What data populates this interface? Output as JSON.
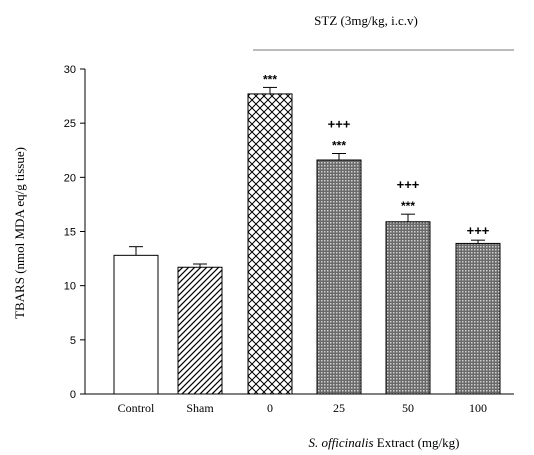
{
  "chart_data": {
    "type": "bar",
    "ylabel": "TBARS (nmol MDA eq/g tissue)",
    "ylim": [
      0,
      30
    ],
    "yticks": [
      "0",
      "5",
      "10",
      "15",
      "20",
      "25",
      "30"
    ],
    "grid": false,
    "categories": [
      "Control",
      "Sham",
      "0",
      "25",
      "50",
      "100"
    ],
    "values": [
      12.8,
      11.7,
      27.7,
      21.6,
      15.9,
      13.9
    ],
    "errors": [
      0.8,
      0.3,
      0.6,
      0.6,
      0.7,
      0.3
    ],
    "significance_vs_control": [
      "",
      "",
      "***",
      "***",
      "***",
      ""
    ],
    "significance_vs_stz": [
      "",
      "",
      "",
      "+++",
      "+++",
      "+++"
    ],
    "group_label_top": "STZ (3mg/kg, i.c.v)",
    "group_label_bottom_italic": "S. officinalis",
    "group_label_bottom_rest": " Extract (mg/kg)",
    "bar_fills": [
      "white",
      "diagonal",
      "crosshatch",
      "dots",
      "dots",
      "dots"
    ],
    "colors": {
      "stroke": "#000000",
      "background": "#ffffff",
      "line": "#777777"
    }
  }
}
